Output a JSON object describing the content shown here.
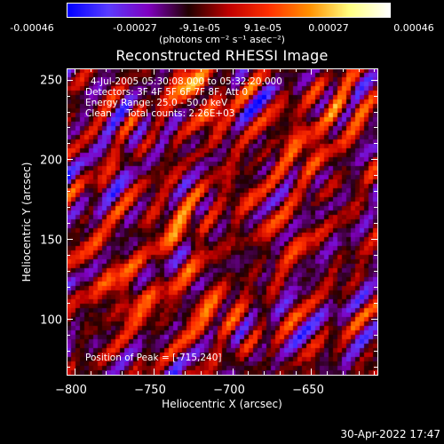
{
  "colorbar": {
    "ticks": [
      "-0.00046",
      "-0.00027",
      "-9.1e-05",
      "9.1e-05",
      "0.00027",
      "0.00046"
    ],
    "unit": "(photons cm⁻² s⁻¹ asec⁻²)",
    "range": [
      -0.00046,
      0.00046
    ],
    "colors": [
      "#0000ff",
      "#5a3cff",
      "#8000c0",
      "#200000",
      "#c00000",
      "#ff3000",
      "#ff9000",
      "#ffff80",
      "#ffffff"
    ]
  },
  "chart_data": {
    "type": "heatmap",
    "title": "Reconstructed RHESSI Image",
    "xlabel": "Heliocentric X (arcsec)",
    "ylabel": "Heliocentric Y (arcsec)",
    "xlim": [
      -805,
      -608
    ],
    "ylim": [
      65,
      257
    ],
    "xticks": [
      -800,
      -750,
      -700,
      -650
    ],
    "xtick_labels": [
      "−800",
      "−750",
      "−700",
      "−650"
    ],
    "yticks": [
      100,
      150,
      200,
      250
    ],
    "ytick_labels": [
      "100",
      "150",
      "200",
      "250"
    ],
    "peak": [
      -715,
      240
    ],
    "annotations": {
      "time": "4-Jul-2005 05:30:08.000 to 05:32:20.000",
      "detectors": "Detectors: 3F 4F 5F 6F 7F 8F, Att 0",
      "energy": "Energy Range: 25.0 - 50.0 keV",
      "method": "Clean     Total counts: 2.26E+03",
      "peak_text": "Position of Peak = [-715,240]"
    },
    "grid": false
  },
  "footer": {
    "timestamp": "30-Apr-2022 17:47"
  }
}
